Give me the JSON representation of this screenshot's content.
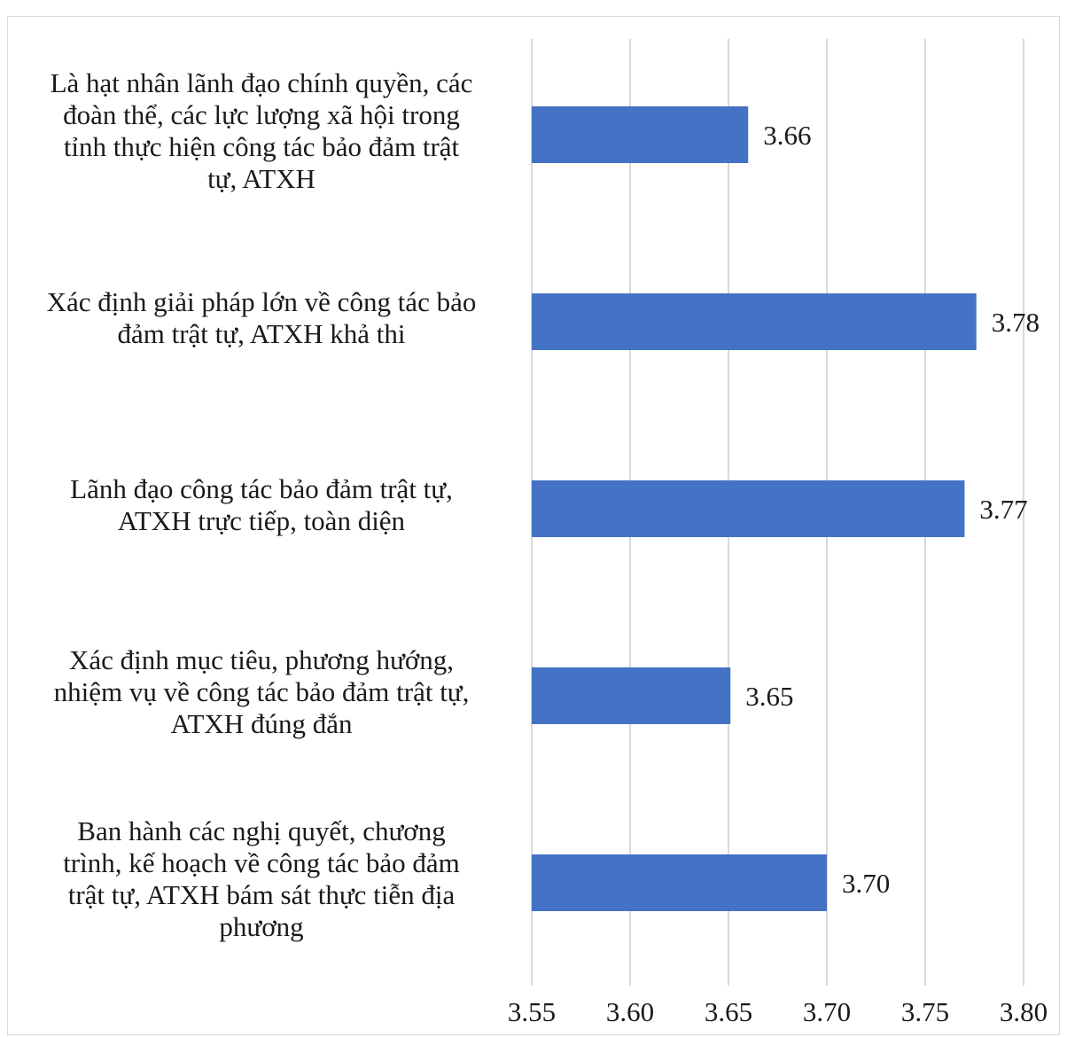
{
  "chart_data": {
    "type": "bar",
    "orientation": "horizontal",
    "title": "",
    "xlabel": "",
    "ylabel": "",
    "xlim": [
      3.55,
      3.8
    ],
    "x_ticks": [
      "3.55",
      "3.60",
      "3.65",
      "3.70",
      "3.75",
      "3.80"
    ],
    "grid": "vertical",
    "bar_color": "#4472C4",
    "categories": [
      {
        "lines": [
          "Là hạt nhân lãnh đạo chính quyền, các",
          "đoàn thể, các lực lượng xã hội trong",
          "tỉnh thực hiện công tác bảo đảm trật",
          "tự, ATXH"
        ],
        "value": 3.66,
        "label": "3.66"
      },
      {
        "lines": [
          "Xác định giải pháp lớn về công tác bảo",
          "đảm trật tự, ATXH khả thi"
        ],
        "value": 3.776,
        "label": "3.78"
      },
      {
        "lines": [
          "Lãnh đạo công tác bảo đảm trật tự,",
          "ATXH trực tiếp, toàn diện"
        ],
        "value": 3.77,
        "label": "3.77"
      },
      {
        "lines": [
          "Xác định mục tiêu, phương hướng,",
          "nhiệm vụ về công tác bảo đảm trật tự,",
          "ATXH đúng đắn"
        ],
        "value": 3.651,
        "label": "3.65"
      },
      {
        "lines": [
          "Ban hành các nghị quyết, chương",
          "trình, kế hoạch về công tác bảo đảm",
          "trật tự, ATXH bám sát thực tiễn địa",
          "phương"
        ],
        "value": 3.7,
        "label": "3.70"
      }
    ]
  }
}
